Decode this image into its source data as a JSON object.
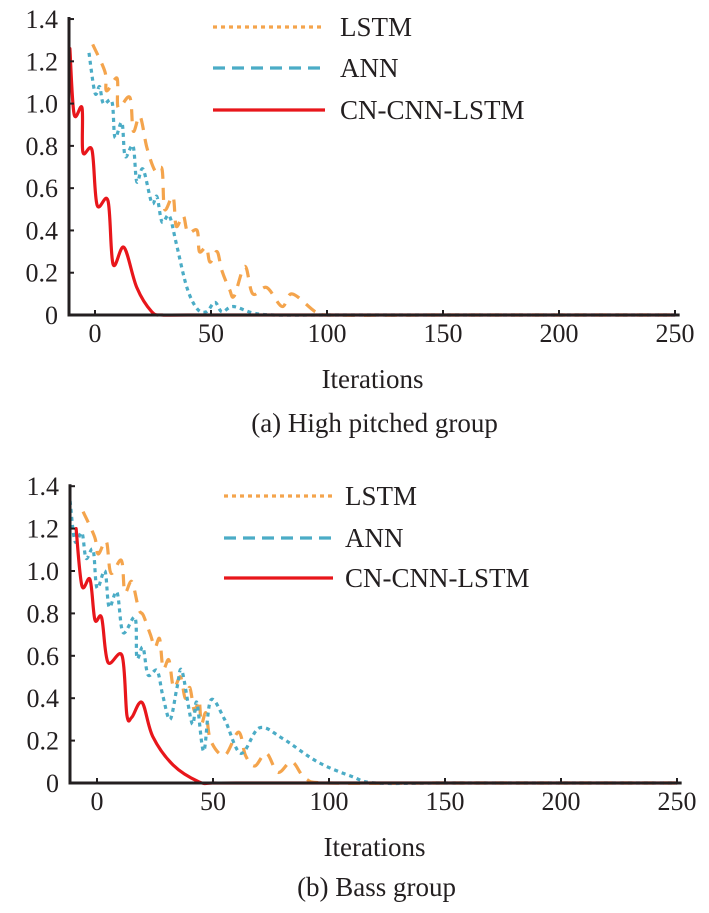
{
  "chart_data": [
    {
      "type": "line",
      "caption": "(a) High pitched group",
      "xlabel": "Iterations",
      "ylabel": "",
      "xlim": [
        -11,
        252
      ],
      "ylim": [
        0,
        1.4
      ],
      "xticks": [
        "0",
        "50",
        "100",
        "150",
        "200",
        "250"
      ],
      "xtick_values": [
        0,
        50,
        100,
        150,
        200,
        250
      ],
      "yticks": [
        "0",
        "0.2",
        "0.4",
        "0.6",
        "0.8",
        "1.0",
        "1.2",
        "1.4"
      ],
      "ytick_values": [
        0,
        0.2,
        0.4,
        0.6,
        0.8,
        1.0,
        1.2,
        1.4
      ],
      "grid": false,
      "legend_placement": "top-right",
      "series": [
        {
          "name": "LSTM",
          "color": "#f4a44c",
          "legend_style": "dotted",
          "line_style": "dashed",
          "x": [
            -1,
            4.3,
            5,
            9.5,
            10,
            15,
            16.5,
            19.4,
            22.4,
            26,
            28.9,
            30,
            33.6,
            35,
            38,
            40,
            44,
            45,
            48,
            49.6,
            52.6,
            54.7,
            58,
            60,
            64.6,
            68,
            74,
            80.6,
            85,
            95,
            101,
            150,
            200,
            250
          ],
          "y": [
            1.28,
            1.15,
            1.06,
            1.12,
            0.98,
            1.03,
            0.87,
            0.94,
            0.79,
            0.68,
            0.69,
            0.5,
            0.56,
            0.42,
            0.47,
            0.39,
            0.4,
            0.3,
            0.32,
            0.25,
            0.3,
            0.21,
            0.12,
            0.09,
            0.23,
            0.1,
            0.13,
            0.04,
            0.1,
            0.015,
            0,
            0,
            0,
            0
          ]
        },
        {
          "name": "ANN",
          "color": "#4bacc6",
          "legend_style": "dashed",
          "line_style": "dotted",
          "x": [
            -2.6,
            0,
            2,
            3.6,
            7.3,
            8.6,
            11.6,
            13,
            16.4,
            18,
            20.7,
            24.5,
            26.7,
            28.9,
            32,
            35,
            39.6,
            44,
            48,
            51.7,
            54.7,
            59.5,
            68,
            77,
            100,
            150,
            200,
            250
          ],
          "y": [
            1.24,
            1.05,
            1.08,
            1.0,
            1.01,
            0.84,
            0.91,
            0.75,
            0.8,
            0.63,
            0.69,
            0.53,
            0.56,
            0.44,
            0.47,
            0.34,
            0.13,
            0.03,
            0.015,
            0.06,
            0.015,
            0.04,
            0.01,
            0,
            0,
            0,
            0,
            0
          ]
        },
        {
          "name": "CN-CNN-LSTM",
          "color": "#e8161b",
          "legend_style": "solid",
          "line_style": "solid",
          "x": [
            -10.8,
            -9,
            -5.6,
            -5.2,
            -1.3,
            0.9,
            5.6,
            7.8,
            12.5,
            18,
            24.5,
            29,
            40,
            100,
            150,
            200,
            250
          ],
          "y": [
            1.26,
            0.95,
            0.98,
            0.77,
            0.78,
            0.52,
            0.54,
            0.24,
            0.32,
            0.13,
            0.015,
            0,
            0,
            0,
            0,
            0,
            0
          ]
        }
      ]
    },
    {
      "type": "line",
      "caption": "(b) Bass group",
      "xlabel": "Iterations",
      "ylabel": "",
      "xlim": [
        -11,
        252
      ],
      "ylim": [
        0,
        1.4
      ],
      "xticks": [
        "0",
        "50",
        "100",
        "150",
        "200",
        "250"
      ],
      "xtick_values": [
        0,
        50,
        100,
        150,
        200,
        250
      ],
      "yticks": [
        "0",
        "0.2",
        "0.4",
        "0.6",
        "0.8",
        "1.0",
        "1.2",
        "1.4"
      ],
      "ytick_values": [
        0,
        0.2,
        0.4,
        0.6,
        0.8,
        1.0,
        1.2,
        1.4
      ],
      "grid": false,
      "legend_placement": "top-right",
      "series": [
        {
          "name": "LSTM",
          "color": "#f4a44c",
          "legend_style": "dotted",
          "line_style": "dashed",
          "x": [
            -6,
            -1,
            0.5,
            4,
            6,
            10.5,
            12,
            15,
            18,
            20,
            23,
            25,
            27,
            28.5,
            31,
            33,
            36,
            38,
            40,
            42,
            44,
            45,
            47,
            49,
            55,
            61,
            64,
            68,
            73,
            78,
            84,
            90,
            100,
            150,
            200,
            250
          ],
          "y": [
            1.28,
            1.16,
            1.08,
            1.14,
            0.99,
            1.05,
            0.9,
            0.95,
            0.82,
            0.79,
            0.7,
            0.64,
            0.68,
            0.54,
            0.58,
            0.45,
            0.5,
            0.4,
            0.45,
            0.34,
            0.39,
            0.28,
            0.33,
            0.2,
            0.13,
            0.24,
            0.13,
            0.08,
            0.14,
            0.05,
            0.1,
            0.02,
            0,
            0,
            0,
            0
          ]
        },
        {
          "name": "ANN",
          "color": "#4bacc6",
          "legend_style": "dashed",
          "line_style": "dotted",
          "x": [
            -11.6,
            -9.5,
            -6.5,
            -4.7,
            -1.7,
            0,
            3.4,
            5.2,
            8.6,
            11.2,
            16.4,
            17.2,
            19.8,
            22,
            25.9,
            28.4,
            31.5,
            34.5,
            36.6,
            41,
            43,
            46,
            49,
            55,
            62,
            70,
            80,
            95,
            110,
            120,
            150,
            200,
            250
          ],
          "y": [
            1.33,
            1.14,
            1.18,
            1.06,
            1.1,
            0.92,
            1.0,
            0.83,
            0.9,
            0.71,
            0.78,
            0.59,
            0.64,
            0.51,
            0.53,
            0.41,
            0.3,
            0.45,
            0.53,
            0.28,
            0.38,
            0.15,
            0.39,
            0.3,
            0.14,
            0.26,
            0.21,
            0.1,
            0.03,
            0,
            0,
            0,
            0
          ]
        },
        {
          "name": "CN-CNN-LSTM",
          "color": "#e8161b",
          "legend_style": "solid",
          "line_style": "solid",
          "x": [
            -9,
            -6.5,
            -3,
            -0.9,
            2,
            4.7,
            10.8,
            12.9,
            15,
            19.4,
            24,
            32.8,
            44,
            50,
            60,
            100,
            150,
            200,
            250
          ],
          "y": [
            1.2,
            0.93,
            0.96,
            0.77,
            0.78,
            0.57,
            0.6,
            0.32,
            0.31,
            0.38,
            0.22,
            0.085,
            0.005,
            0,
            0,
            0,
            0,
            0,
            0
          ]
        }
      ]
    }
  ]
}
